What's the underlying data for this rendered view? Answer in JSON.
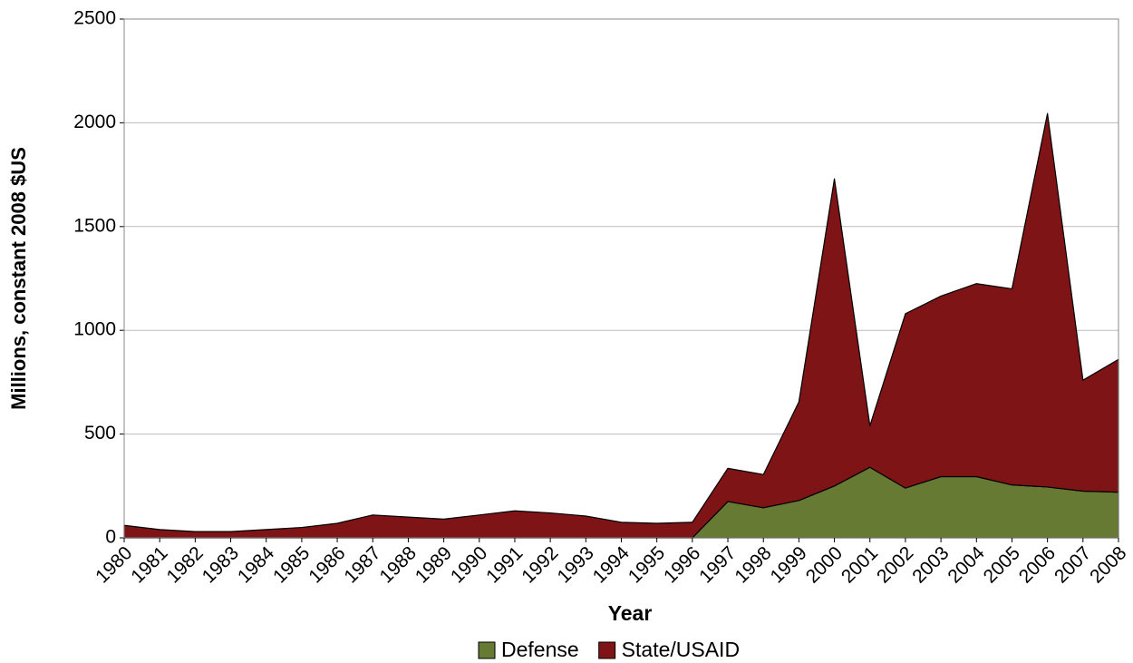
{
  "chart_data": {
    "type": "stacked_area",
    "x_label": "Year",
    "y_label": "Millions, constant 2008 $US",
    "x": [
      1980,
      1981,
      1982,
      1983,
      1984,
      1985,
      1986,
      1987,
      1988,
      1989,
      1990,
      1991,
      1992,
      1993,
      1994,
      1995,
      1996,
      1997,
      1998,
      1999,
      2000,
      2001,
      2002,
      2003,
      2004,
      2005,
      2006,
      2007,
      2008
    ],
    "series": [
      {
        "name": "Defense",
        "color": "#667a33",
        "values": [
          0,
          0,
          0,
          0,
          0,
          0,
          0,
          0,
          0,
          0,
          0,
          0,
          0,
          0,
          0,
          0,
          0,
          175,
          145,
          180,
          250,
          340,
          240,
          295,
          295,
          255,
          245,
          225,
          220
        ]
      },
      {
        "name": "State/USAID",
        "color": "#7f1416",
        "values": [
          60,
          40,
          30,
          30,
          40,
          50,
          70,
          110,
          100,
          90,
          110,
          130,
          120,
          105,
          75,
          70,
          75,
          160,
          160,
          475,
          1480,
          200,
          840,
          870,
          930,
          945,
          1800,
          535,
          640
        ]
      }
    ],
    "xlim": [
      1980,
      2008
    ],
    "ylim": [
      0,
      2500
    ],
    "yticks": [
      0,
      500,
      1000,
      1500,
      2000,
      2500
    ],
    "grid": true,
    "legend": "bottom"
  }
}
